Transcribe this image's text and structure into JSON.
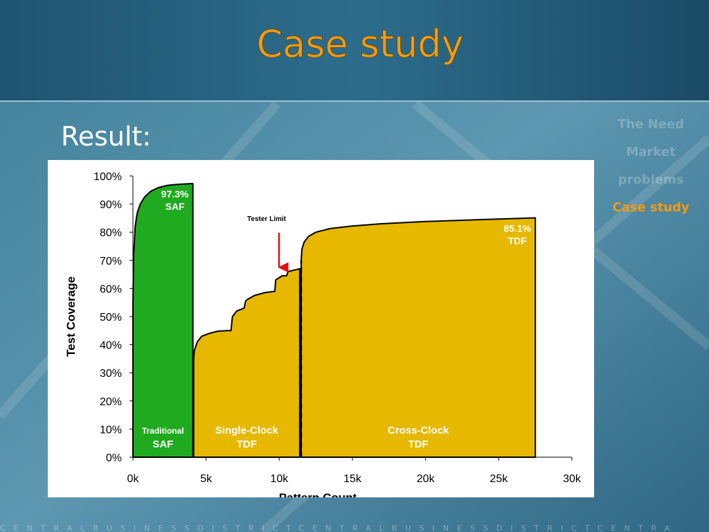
{
  "slide": {
    "title": "Case study",
    "heading": "Result:",
    "nav": [
      "The Need",
      "Market",
      "problems",
      "Case study"
    ],
    "footer": "CENTRALBUSINESSDISTRICTCENTRALBUSINESSDISTRICTCENTRA"
  },
  "chart_data": {
    "type": "area",
    "y_label": "Test Coverage",
    "x_label": "Pattern Count",
    "annotation": "Tester Limit",
    "xlim": [
      0,
      30000
    ],
    "ylim": [
      0,
      100
    ],
    "xticks": [
      {
        "value": 0,
        "label": "0k"
      },
      {
        "value": 5000,
        "label": "5k"
      },
      {
        "value": 10000,
        "label": "10k"
      },
      {
        "value": 15000,
        "label": "15k"
      },
      {
        "value": 20000,
        "label": "20k"
      },
      {
        "value": 25000,
        "label": "25k"
      },
      {
        "value": 30000,
        "label": "30k"
      }
    ],
    "yticks": [
      {
        "value": 0,
        "label": "0%"
      },
      {
        "value": 10,
        "label": "10%"
      },
      {
        "value": 20,
        "label": "20%"
      },
      {
        "value": 30,
        "label": "30%"
      },
      {
        "value": 40,
        "label": "40%"
      },
      {
        "value": 50,
        "label": "50%"
      },
      {
        "value": 60,
        "label": "60%"
      },
      {
        "value": 70,
        "label": "70%"
      },
      {
        "value": 80,
        "label": "80%"
      },
      {
        "value": 90,
        "label": "90%"
      },
      {
        "value": 100,
        "label": "100%"
      }
    ],
    "series": [
      {
        "name": "Traditional SAF",
        "color": "#1faa1f",
        "tag": "SAF",
        "x": [
          0,
          0,
          50,
          150,
          300,
          500,
          800,
          1200,
          1700,
          2300,
          3000,
          3700,
          4100
        ],
        "values": [
          0,
          55,
          72,
          82,
          87,
          90,
          92.5,
          94.5,
          95.8,
          96.6,
          97,
          97.2,
          97.3
        ],
        "value_labels": [
          null,
          null,
          null,
          null,
          null,
          null,
          null,
          null,
          null,
          null,
          null,
          null,
          "97.3%"
        ]
      },
      {
        "name": "Single-Clock TDF",
        "color": "#e6b800",
        "x": [
          4150,
          4200,
          4400,
          4700,
          5200,
          5800,
          6500,
          6700,
          6800,
          7100,
          7600,
          7700,
          7800,
          8300,
          9000,
          9700,
          9750,
          10200,
          10500,
          10600,
          11000,
          11400
        ],
        "values": [
          35,
          38,
          41,
          43,
          44,
          44.8,
          45,
          45,
          50,
          52,
          53,
          55.5,
          56,
          57.5,
          58.5,
          59,
          63,
          64.5,
          64.5,
          66,
          66.5,
          67
        ]
      },
      {
        "name": "Cross-Clock TDF",
        "color": "#e6b800",
        "tag": "TDF",
        "x": [
          11500,
          11550,
          11700,
          12000,
          12500,
          13500,
          15000,
          17000,
          20000,
          24000,
          27500
        ],
        "values": [
          70,
          74,
          76.5,
          78.5,
          80,
          81.3,
          82.2,
          83,
          83.8,
          84.5,
          85.1
        ],
        "value_labels": [
          null,
          null,
          null,
          null,
          null,
          null,
          null,
          null,
          null,
          null,
          "85.1%"
        ]
      }
    ]
  }
}
